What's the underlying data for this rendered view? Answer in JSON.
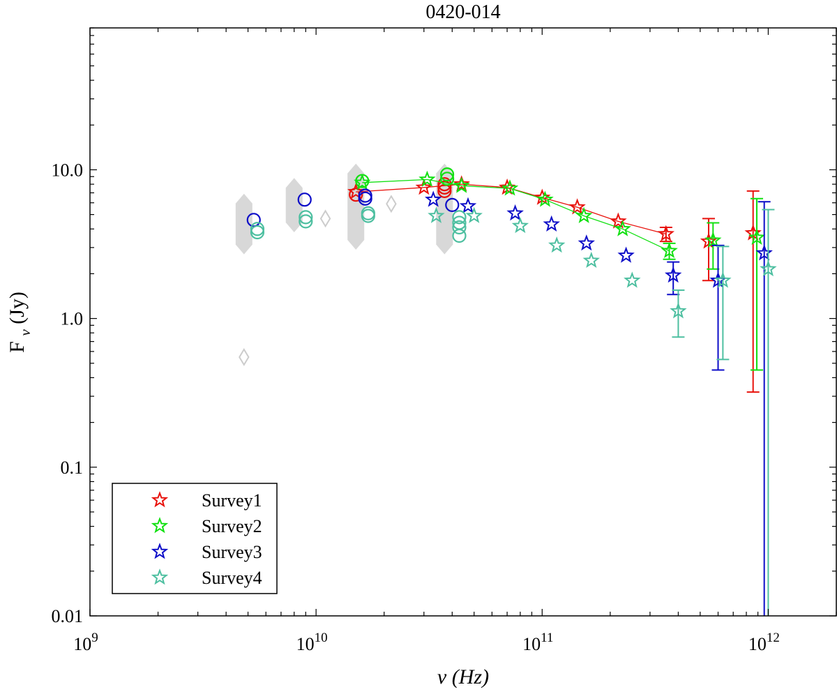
{
  "chart_data": {
    "type": "scatter",
    "title": "0420-014",
    "xlabel": "ν (Hz)",
    "ylabel_main": "F",
    "ylabel_sub": "ν",
    "ylabel_unit": " (Jy)",
    "x_scale": "log",
    "y_scale": "log",
    "xlim": [
      1000000000.0,
      2000000000000.0
    ],
    "ylim": [
      0.01,
      90
    ],
    "x_ticks": [
      {
        "value": 1000000000.0,
        "base": "10",
        "exp": "9"
      },
      {
        "value": 10000000000.0,
        "base": "10",
        "exp": "10"
      },
      {
        "value": 100000000000.0,
        "base": "10",
        "exp": "11"
      },
      {
        "value": 1000000000000.0,
        "base": "10",
        "exp": "12"
      }
    ],
    "y_ticks": [
      {
        "value": 0.01,
        "label": "0.01"
      },
      {
        "value": 0.1,
        "label": "0.1"
      },
      {
        "value": 1,
        "label": "1.0"
      },
      {
        "value": 10,
        "label": "10.0"
      }
    ],
    "grid": false,
    "legend_position": "bottom-left",
    "series": [
      {
        "name": "Survey1",
        "color": "#e8120c",
        "connected": true,
        "stars": [
          {
            "x": 15000000000.0,
            "y": 7.1
          },
          {
            "x": 30000000000.0,
            "y": 7.6
          },
          {
            "x": 44000000000.0,
            "y": 8.0
          },
          {
            "x": 70000000000.0,
            "y": 7.6
          },
          {
            "x": 100000000000.0,
            "y": 6.5
          },
          {
            "x": 143000000000.0,
            "y": 5.6
          },
          {
            "x": 217000000000.0,
            "y": 4.5
          },
          {
            "x": 353000000000.0,
            "y": 3.7,
            "lo": 3.3,
            "hi": 4.1
          },
          {
            "x": 545000000000.0,
            "y": 3.3,
            "lo": 1.8,
            "hi": 4.7
          },
          {
            "x": 857000000000.0,
            "y": 3.75,
            "lo": 0.32,
            "hi": 7.2
          }
        ],
        "circles": [
          {
            "x": 15000000000.0,
            "y": 6.8
          },
          {
            "x": 37000000000.0,
            "y": 8.0
          },
          {
            "x": 37000000000.0,
            "y": 7.6
          },
          {
            "x": 37000000000.0,
            "y": 7.2
          }
        ]
      },
      {
        "name": "Survey2",
        "color": "#12e012",
        "connected": true,
        "stars": [
          {
            "x": 16000000000.0,
            "y": 8.2
          },
          {
            "x": 31000000000.0,
            "y": 8.6
          },
          {
            "x": 44000000000.0,
            "y": 7.8
          },
          {
            "x": 72000000000.0,
            "y": 7.5
          },
          {
            "x": 103000000000.0,
            "y": 6.3
          },
          {
            "x": 153000000000.0,
            "y": 4.9
          },
          {
            "x": 227000000000.0,
            "y": 4.0
          },
          {
            "x": 365000000000.0,
            "y": 2.85,
            "lo": 2.5,
            "hi": 3.2
          },
          {
            "x": 570000000000.0,
            "y": 3.35,
            "lo": 2.15,
            "hi": 4.4
          },
          {
            "x": 890000000000.0,
            "y": 3.5,
            "lo": 0.45,
            "hi": 6.4
          }
        ],
        "circles": [
          {
            "x": 16000000000.0,
            "y": 8.4
          },
          {
            "x": 38000000000.0,
            "y": 9.3
          },
          {
            "x": 38000000000.0,
            "y": 8.7
          }
        ]
      },
      {
        "name": "Survey3",
        "color": "#0c0cc8",
        "connected": false,
        "stars": [
          {
            "x": 33000000000.0,
            "y": 6.3
          },
          {
            "x": 47000000000.0,
            "y": 5.7
          },
          {
            "x": 76000000000.0,
            "y": 5.1
          },
          {
            "x": 110000000000.0,
            "y": 4.3
          },
          {
            "x": 157000000000.0,
            "y": 3.2
          },
          {
            "x": 235000000000.0,
            "y": 2.65
          },
          {
            "x": 380000000000.0,
            "y": 1.95,
            "lo": 1.45,
            "hi": 2.4
          },
          {
            "x": 600000000000.0,
            "y": 1.8,
            "lo": 0.45,
            "hi": 3.1
          },
          {
            "x": 960000000000.0,
            "y": 2.75,
            "lo": 0.01,
            "hi": 6.1
          }
        ],
        "circles": [
          {
            "x": 5300000000.0,
            "y": 4.6
          },
          {
            "x": 8900000000.0,
            "y": 6.3
          },
          {
            "x": 16500000000.0,
            "y": 6.7
          },
          {
            "x": 16500000000.0,
            "y": 6.4
          },
          {
            "x": 40000000000.0,
            "y": 5.8
          }
        ]
      },
      {
        "name": "Survey4",
        "color": "#4dbfa0",
        "connected": false,
        "stars": [
          {
            "x": 34000000000.0,
            "y": 4.9
          },
          {
            "x": 50000000000.0,
            "y": 4.9
          },
          {
            "x": 80000000000.0,
            "y": 4.2
          },
          {
            "x": 116000000000.0,
            "y": 3.1
          },
          {
            "x": 165000000000.0,
            "y": 2.45
          },
          {
            "x": 250000000000.0,
            "y": 1.8
          },
          {
            "x": 400000000000.0,
            "y": 1.12,
            "lo": 0.75,
            "hi": 1.55
          },
          {
            "x": 630000000000.0,
            "y": 1.8,
            "lo": 0.53,
            "hi": 3.05
          },
          {
            "x": 1000000000000.0,
            "y": 2.15,
            "lo": 0.01,
            "hi": 5.4
          }
        ],
        "circles": [
          {
            "x": 5500000000.0,
            "y": 4.0
          },
          {
            "x": 5500000000.0,
            "y": 3.8
          },
          {
            "x": 9000000000.0,
            "y": 4.8
          },
          {
            "x": 9000000000.0,
            "y": 4.5
          },
          {
            "x": 17000000000.0,
            "y": 5.1
          },
          {
            "x": 17000000000.0,
            "y": 4.9
          },
          {
            "x": 43000000000.0,
            "y": 4.8
          },
          {
            "x": 43000000000.0,
            "y": 4.4
          },
          {
            "x": 43000000000.0,
            "y": 4.1
          },
          {
            "x": 43000000000.0,
            "y": 3.6
          }
        ]
      }
    ],
    "historical_range_bands": [
      {
        "x": 4800000000.0,
        "lo": 2.7,
        "hi": 6.9
      },
      {
        "x": 8000000000.0,
        "lo": 3.8,
        "hi": 8.8
      },
      {
        "x": 15000000000.0,
        "lo": 2.9,
        "hi": 11.0
      },
      {
        "x": 37000000000.0,
        "lo": 2.7,
        "hi": 11.0
      }
    ],
    "historical_points": [
      {
        "x": 4800000000.0,
        "y": 0.55
      },
      {
        "x": 11000000000.0,
        "y": 4.7
      },
      {
        "x": 21500000000.0,
        "y": 5.9
      }
    ],
    "historical_color": "#d8d8d8"
  }
}
